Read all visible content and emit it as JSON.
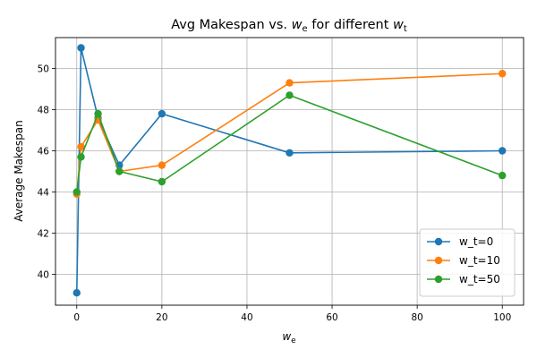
{
  "chart_data": {
    "type": "line",
    "title": "Avg Makespan vs. w_e for different w_t",
    "title_parts": {
      "prefix": "Avg Makespan vs. ",
      "var1": "w",
      "sub1": "e",
      "middle": " for different ",
      "var2": "w",
      "sub2": "t"
    },
    "xlabel": "w_e",
    "xlabel_parts": {
      "var": "w",
      "sub": "e"
    },
    "ylabel": "Average Makespan",
    "x": [
      0,
      1,
      5,
      10,
      20,
      50,
      100
    ],
    "xlim": [
      -5,
      105
    ],
    "ylim": [
      38.5,
      51.5
    ],
    "xticks": [
      0,
      20,
      40,
      60,
      80,
      100
    ],
    "yticks": [
      40,
      42,
      44,
      46,
      48,
      50
    ],
    "grid": true,
    "legend_position": "lower-right",
    "series": [
      {
        "name": "w_t=0",
        "color": "#1f77b4",
        "values": [
          39.1,
          51.0,
          47.6,
          45.3,
          47.8,
          45.9,
          46.0
        ]
      },
      {
        "name": "w_t=10",
        "color": "#ff7f0e",
        "values": [
          43.9,
          46.2,
          47.5,
          45.0,
          45.3,
          49.3,
          49.75
        ]
      },
      {
        "name": "w_t=50",
        "color": "#2ca02c",
        "values": [
          44.0,
          45.7,
          47.8,
          45.0,
          44.5,
          48.7,
          44.8
        ]
      }
    ]
  }
}
